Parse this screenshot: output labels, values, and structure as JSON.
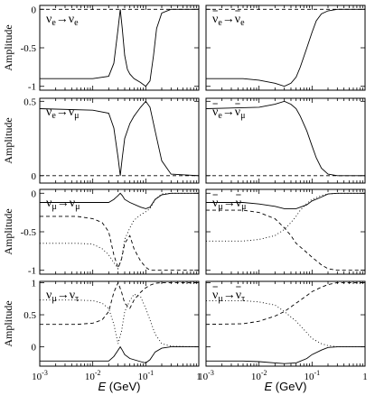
{
  "chart_data": {
    "type": "line",
    "xlabel_var": "E",
    "xlabel_unit": " (GeV)",
    "ylabel": "Amplitude",
    "xscale": "log",
    "xlim": [
      0.001,
      1
    ],
    "xtick_labels": [
      {
        "base": "10",
        "exp": "-3"
      },
      {
        "base": "10",
        "exp": "-2"
      },
      {
        "base": "10",
        "exp": "-1"
      },
      {
        "base": "1",
        "exp": ""
      }
    ],
    "rows": [
      {
        "ylim": [
          -1.05,
          0.05
        ],
        "yticks": [
          {
            "v": 0,
            "label": "0"
          },
          {
            "v": -0.5,
            "label": "-0.5"
          },
          {
            "v": -1,
            "label": "-1"
          }
        ],
        "panels": [
          {
            "label": {
              "a": "ν",
              "asub": "e",
              "b": "ν",
              "bsub": "e",
              "abar": false,
              "bbar": false
            },
            "series": [
              {
                "style": "solid",
                "x": [
                  0.001,
                  0.01,
                  0.02,
                  0.025,
                  0.03,
                  0.033,
                  0.036,
                  0.04,
                  0.045,
                  0.05,
                  0.06,
                  0.08,
                  0.1,
                  0.12,
                  0.14,
                  0.16,
                  0.2,
                  0.3,
                  1
                ],
                "y": [
                  -0.9,
                  -0.9,
                  -0.87,
                  -0.7,
                  -0.25,
                  0,
                  -0.25,
                  -0.6,
                  -0.78,
                  -0.84,
                  -0.9,
                  -0.95,
                  -1.0,
                  -0.93,
                  -0.6,
                  -0.25,
                  -0.05,
                  0,
                  0
                ]
              },
              {
                "style": "dashed",
                "x": [
                  0.001,
                  1
                ],
                "y": [
                  0,
                  0
                ]
              }
            ]
          },
          {
            "label": {
              "a": "ν",
              "asub": "e",
              "b": "ν",
              "bsub": "e",
              "abar": true,
              "bbar": true
            },
            "series": [
              {
                "style": "solid",
                "x": [
                  0.001,
                  0.005,
                  0.01,
                  0.02,
                  0.03,
                  0.04,
                  0.05,
                  0.06,
                  0.08,
                  0.1,
                  0.12,
                  0.15,
                  0.2,
                  0.3,
                  1
                ],
                "y": [
                  -0.9,
                  -0.9,
                  -0.92,
                  -0.96,
                  -1.0,
                  -0.96,
                  -0.88,
                  -0.75,
                  -0.5,
                  -0.3,
                  -0.15,
                  -0.06,
                  -0.02,
                  0,
                  0
                ]
              },
              {
                "style": "dashed",
                "x": [
                  0.001,
                  1
                ],
                "y": [
                  0,
                  0
                ]
              }
            ]
          }
        ]
      },
      {
        "ylim": [
          -0.05,
          0.52
        ],
        "yticks": [
          {
            "v": 0.5,
            "label": "0.5"
          },
          {
            "v": 0,
            "label": "0"
          }
        ],
        "panels": [
          {
            "label": {
              "a": "ν",
              "asub": "e",
              "b": "ν",
              "bsub": "μ",
              "abar": false,
              "bbar": false
            },
            "series": [
              {
                "style": "solid",
                "x": [
                  0.001,
                  0.01,
                  0.02,
                  0.025,
                  0.03,
                  0.033,
                  0.036,
                  0.04,
                  0.05,
                  0.06,
                  0.08,
                  0.1,
                  0.12,
                  0.15,
                  0.2,
                  0.3,
                  1
                ],
                "y": [
                  0.45,
                  0.44,
                  0.42,
                  0.32,
                  0.12,
                  0,
                  0.12,
                  0.25,
                  0.35,
                  0.4,
                  0.46,
                  0.5,
                  0.46,
                  0.3,
                  0.1,
                  0.01,
                  0
                ]
              },
              {
                "style": "dashed",
                "x": [
                  0.001,
                  1
                ],
                "y": [
                  0,
                  0
                ]
              }
            ]
          },
          {
            "label": {
              "a": "ν",
              "asub": "e",
              "b": "ν",
              "bsub": "μ",
              "abar": true,
              "bbar": true
            },
            "series": [
              {
                "style": "solid",
                "x": [
                  0.001,
                  0.01,
                  0.02,
                  0.03,
                  0.04,
                  0.05,
                  0.06,
                  0.08,
                  0.1,
                  0.12,
                  0.15,
                  0.2,
                  0.3,
                  1
                ],
                "y": [
                  0.45,
                  0.46,
                  0.48,
                  0.5,
                  0.48,
                  0.45,
                  0.4,
                  0.3,
                  0.2,
                  0.12,
                  0.05,
                  0.01,
                  0,
                  0
                ]
              },
              {
                "style": "dashed",
                "x": [
                  0.001,
                  1
                ],
                "y": [
                  0,
                  0
                ]
              }
            ]
          }
        ]
      },
      {
        "ylim": [
          -1.05,
          0.05
        ],
        "yticks": [
          {
            "v": 0,
            "label": "0"
          },
          {
            "v": -0.5,
            "label": "-0.5"
          },
          {
            "v": -1,
            "label": "-1"
          }
        ],
        "panels": [
          {
            "label": {
              "a": "ν",
              "asub": "μ",
              "b": "ν",
              "bsub": "μ",
              "abar": false,
              "bbar": false
            },
            "series": [
              {
                "style": "solid",
                "x": [
                  0.001,
                  0.02,
                  0.025,
                  0.03,
                  0.033,
                  0.036,
                  0.04,
                  0.05,
                  0.08,
                  0.1,
                  0.12,
                  0.15,
                  0.2,
                  0.3,
                  1
                ],
                "y": [
                  -0.12,
                  -0.12,
                  -0.08,
                  -0.03,
                  0,
                  -0.03,
                  -0.08,
                  -0.12,
                  -0.18,
                  -0.2,
                  -0.18,
                  -0.08,
                  -0.02,
                  0,
                  0
                ]
              },
              {
                "style": "dashed",
                "x": [
                  0.001,
                  0.005,
                  0.01,
                  0.015,
                  0.02,
                  0.025,
                  0.03,
                  0.035,
                  0.04,
                  0.05,
                  0.06,
                  0.08,
                  0.1,
                  0.12,
                  0.15,
                  0.2,
                  0.3,
                  1
                ],
                "y": [
                  -0.3,
                  -0.3,
                  -0.33,
                  -0.38,
                  -0.5,
                  -0.8,
                  -0.97,
                  -0.85,
                  -0.65,
                  -0.55,
                  -0.72,
                  -0.88,
                  -0.96,
                  -1.0,
                  -1.0,
                  -1.0,
                  -1.0,
                  -1.0
                ]
              },
              {
                "style": "dotted",
                "x": [
                  0.001,
                  0.005,
                  0.01,
                  0.015,
                  0.02,
                  0.025,
                  0.03,
                  0.035,
                  0.04,
                  0.05,
                  0.06,
                  0.08,
                  0.1,
                  0.12,
                  0.15,
                  0.2,
                  0.3,
                  1
                ],
                "y": [
                  -0.65,
                  -0.65,
                  -0.66,
                  -0.72,
                  -0.8,
                  -0.9,
                  -0.98,
                  -0.85,
                  -0.6,
                  -0.45,
                  -0.35,
                  -0.28,
                  -0.24,
                  -0.2,
                  -0.08,
                  -0.01,
                  0,
                  0
                ]
              }
            ]
          },
          {
            "label": {
              "a": "ν",
              "asub": "μ",
              "b": "ν",
              "bsub": "μ",
              "abar": true,
              "bbar": true
            },
            "series": [
              {
                "style": "solid",
                "x": [
                  0.001,
                  0.005,
                  0.01,
                  0.02,
                  0.03,
                  0.05,
                  0.08,
                  0.1,
                  0.15,
                  0.2,
                  0.3,
                  1
                ],
                "y": [
                  -0.12,
                  -0.12,
                  -0.14,
                  -0.17,
                  -0.2,
                  -0.2,
                  -0.15,
                  -0.1,
                  -0.05,
                  -0.01,
                  0,
                  0
                ]
              },
              {
                "style": "dashed",
                "x": [
                  0.001,
                  0.005,
                  0.01,
                  0.02,
                  0.03,
                  0.04,
                  0.05,
                  0.08,
                  0.1,
                  0.15,
                  0.2,
                  0.3,
                  0.5,
                  1
                ],
                "y": [
                  -0.22,
                  -0.22,
                  -0.25,
                  -0.33,
                  -0.45,
                  -0.55,
                  -0.65,
                  -0.77,
                  -0.83,
                  -0.93,
                  -0.98,
                  -1.0,
                  -1.0,
                  -1.0
                ]
              },
              {
                "style": "dotted",
                "x": [
                  0.001,
                  0.005,
                  0.01,
                  0.02,
                  0.03,
                  0.04,
                  0.05,
                  0.06,
                  0.08,
                  0.1,
                  0.15,
                  0.2,
                  0.3,
                  1
                ],
                "y": [
                  -0.62,
                  -0.62,
                  -0.6,
                  -0.55,
                  -0.47,
                  -0.38,
                  -0.3,
                  -0.22,
                  -0.13,
                  -0.08,
                  -0.03,
                  -0.01,
                  0,
                  0
                ]
              }
            ]
          }
        ]
      },
      {
        "ylim": [
          -0.3,
          1.02
        ],
        "yticks": [
          {
            "v": 1,
            "label": "1"
          },
          {
            "v": 0.5,
            "label": "0.5"
          },
          {
            "v": 0,
            "label": "0"
          }
        ],
        "panels": [
          {
            "label": {
              "a": "ν",
              "asub": "μ",
              "b": "ν",
              "bsub": "τ",
              "abar": false,
              "bbar": false
            },
            "series": [
              {
                "style": "solid",
                "x": [
                  0.001,
                  0.02,
                  0.025,
                  0.03,
                  0.033,
                  0.036,
                  0.04,
                  0.05,
                  0.08,
                  0.1,
                  0.12,
                  0.15,
                  0.2,
                  0.3,
                  1
                ],
                "y": [
                  -0.22,
                  -0.22,
                  -0.15,
                  -0.05,
                  0,
                  -0.05,
                  -0.12,
                  -0.18,
                  -0.23,
                  -0.25,
                  -0.2,
                  -0.08,
                  -0.02,
                  0,
                  0
                ]
              },
              {
                "style": "dashed",
                "x": [
                  0.001,
                  0.005,
                  0.01,
                  0.015,
                  0.02,
                  0.025,
                  0.03,
                  0.035,
                  0.04,
                  0.05,
                  0.06,
                  0.08,
                  0.1,
                  0.12,
                  0.15,
                  0.2,
                  0.3,
                  1
                ],
                "y": [
                  0.35,
                  0.35,
                  0.37,
                  0.42,
                  0.55,
                  0.85,
                  1.0,
                  0.85,
                  0.68,
                  0.6,
                  0.73,
                  0.85,
                  0.92,
                  0.96,
                  0.99,
                  1.0,
                  1.0,
                  1.0
                ]
              },
              {
                "style": "dotted",
                "x": [
                  0.001,
                  0.005,
                  0.01,
                  0.015,
                  0.02,
                  0.025,
                  0.03,
                  0.035,
                  0.04,
                  0.05,
                  0.06,
                  0.08,
                  0.1,
                  0.12,
                  0.15,
                  0.2,
                  0.3,
                  1
                ],
                "y": [
                  0.73,
                  0.73,
                  0.72,
                  0.68,
                  0.6,
                  0.35,
                  0.05,
                  0.25,
                  0.55,
                  0.72,
                  0.82,
                  0.78,
                  0.6,
                  0.42,
                  0.2,
                  0.05,
                  0.01,
                  0
                ]
              }
            ]
          },
          {
            "label": {
              "a": "ν",
              "asub": "μ",
              "b": "ν",
              "bsub": "τ",
              "abar": true,
              "bbar": true
            },
            "series": [
              {
                "style": "solid",
                "x": [
                  0.001,
                  0.005,
                  0.01,
                  0.02,
                  0.03,
                  0.05,
                  0.08,
                  0.1,
                  0.15,
                  0.2,
                  0.3,
                  1
                ],
                "y": [
                  -0.22,
                  -0.22,
                  -0.23,
                  -0.25,
                  -0.26,
                  -0.25,
                  -0.18,
                  -0.12,
                  -0.05,
                  -0.01,
                  0,
                  0
                ]
              },
              {
                "style": "dashed",
                "x": [
                  0.001,
                  0.005,
                  0.01,
                  0.02,
                  0.03,
                  0.05,
                  0.08,
                  0.1,
                  0.15,
                  0.2,
                  0.3,
                  0.5,
                  1
                ],
                "y": [
                  0.35,
                  0.36,
                  0.4,
                  0.48,
                  0.55,
                  0.68,
                  0.8,
                  0.86,
                  0.93,
                  0.97,
                  1.0,
                  1.0,
                  1.0
                ]
              },
              {
                "style": "dotted",
                "x": [
                  0.001,
                  0.005,
                  0.01,
                  0.02,
                  0.03,
                  0.05,
                  0.08,
                  0.1,
                  0.15,
                  0.2,
                  0.3,
                  1
                ],
                "y": [
                  0.72,
                  0.72,
                  0.7,
                  0.65,
                  0.55,
                  0.4,
                  0.22,
                  0.13,
                  0.05,
                  0.02,
                  0,
                  0
                ]
              }
            ]
          }
        ]
      }
    ]
  }
}
